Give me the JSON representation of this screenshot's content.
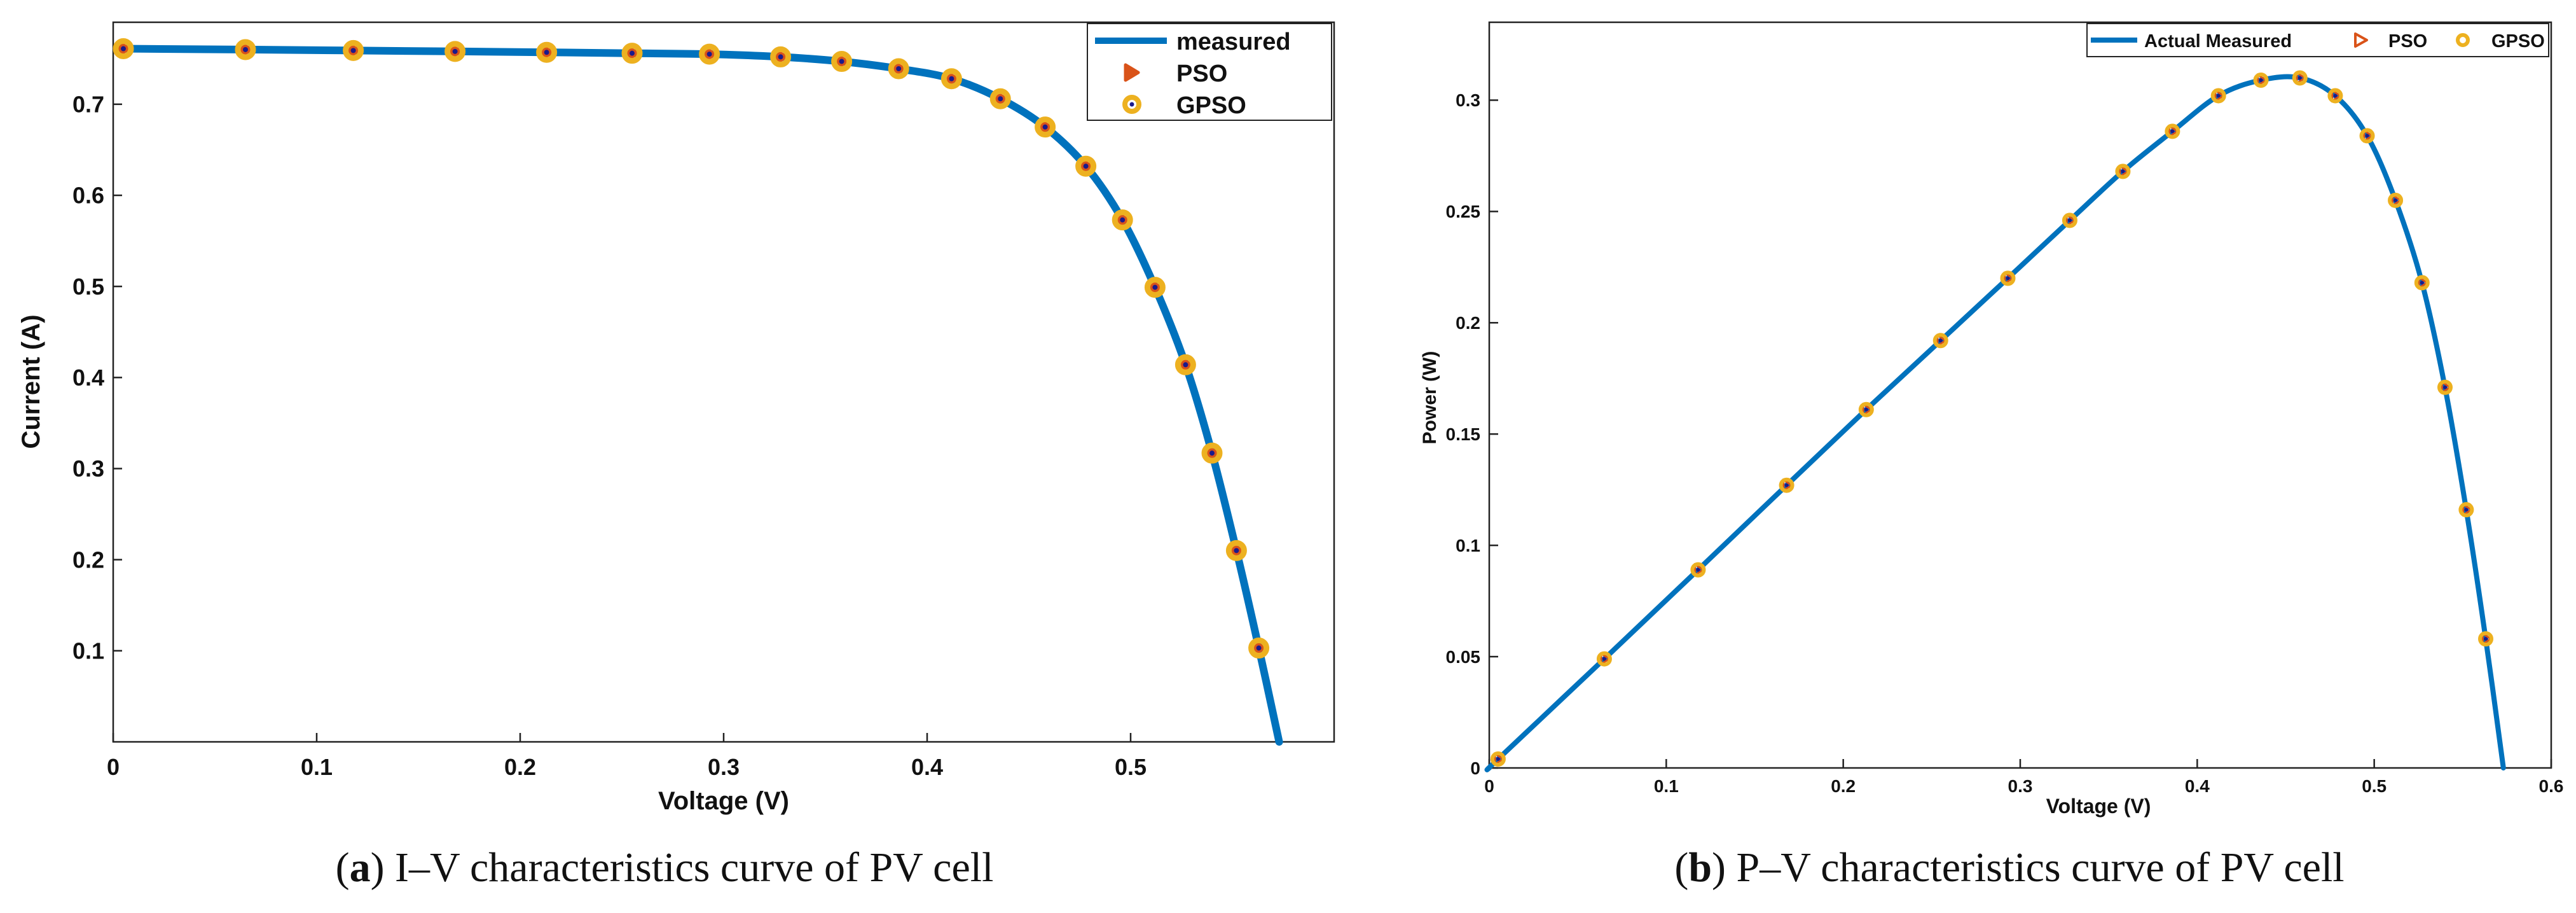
{
  "colors": {
    "line": "#0072BD",
    "pso_marker": "#D95319",
    "gpso_marker": "#EDB120",
    "gpso_center": "#1a1a8c"
  },
  "chart_data": [
    {
      "type": "line",
      "caption_letter": "a",
      "caption_text": " I–V characteristics curve of PV cell",
      "xlabel": "Voltage (V)",
      "ylabel": "Current (A)",
      "xlim": [
        0,
        0.6
      ],
      "ylim": [
        0,
        0.79
      ],
      "xticks": [
        0,
        0.1,
        0.2,
        0.3,
        0.4,
        0.5
      ],
      "xtick_labels": [
        "0",
        "0.1",
        "0.2",
        "0.3",
        "0.4",
        "0.5"
      ],
      "yticks": [
        0.1,
        0.2,
        0.3,
        0.4,
        0.5,
        0.6,
        0.7
      ],
      "ytick_labels": [
        "0.1",
        "0.2",
        "0.3",
        "0.4",
        "0.5",
        "0.6",
        "0.7"
      ],
      "legend": [
        "measured",
        "PSO",
        "GPSO"
      ],
      "legend_position": "top-right",
      "series": [
        {
          "name": "measured",
          "x": [
            0.005,
            0.065,
            0.118,
            0.168,
            0.213,
            0.255,
            0.293,
            0.328,
            0.358,
            0.386,
            0.412,
            0.436,
            0.458,
            0.478,
            0.496,
            0.512,
            0.527,
            0.54,
            0.552,
            0.563,
            0.573
          ],
          "y": [
            0.761,
            0.76,
            0.759,
            0.758,
            0.757,
            0.756,
            0.755,
            0.752,
            0.747,
            0.739,
            0.728,
            0.706,
            0.675,
            0.632,
            0.573,
            0.499,
            0.414,
            0.317,
            0.21,
            0.103,
            0.0
          ]
        },
        {
          "name": "PSO",
          "x": [
            0.005,
            0.065,
            0.118,
            0.168,
            0.213,
            0.255,
            0.293,
            0.328,
            0.358,
            0.386,
            0.412,
            0.436,
            0.458,
            0.478,
            0.496,
            0.512,
            0.527,
            0.54,
            0.552,
            0.563
          ],
          "y": [
            0.761,
            0.76,
            0.759,
            0.758,
            0.757,
            0.756,
            0.755,
            0.752,
            0.747,
            0.739,
            0.728,
            0.706,
            0.675,
            0.632,
            0.573,
            0.499,
            0.414,
            0.317,
            0.21,
            0.103
          ]
        },
        {
          "name": "GPSO",
          "x": [
            0.005,
            0.065,
            0.118,
            0.168,
            0.213,
            0.255,
            0.293,
            0.328,
            0.358,
            0.386,
            0.412,
            0.436,
            0.458,
            0.478,
            0.496,
            0.512,
            0.527,
            0.54,
            0.552,
            0.563
          ],
          "y": [
            0.761,
            0.76,
            0.759,
            0.758,
            0.757,
            0.756,
            0.755,
            0.752,
            0.747,
            0.739,
            0.728,
            0.706,
            0.675,
            0.632,
            0.573,
            0.499,
            0.414,
            0.317,
            0.21,
            0.103
          ]
        }
      ]
    },
    {
      "type": "line",
      "caption_letter": "b",
      "caption_text": " P–V characteristics curve of PV cell",
      "xlabel": "Voltage (V)",
      "ylabel": "Power (W)",
      "xlim": [
        0,
        0.6
      ],
      "ylim": [
        0,
        0.335
      ],
      "xticks": [
        0,
        0.1,
        0.2,
        0.3,
        0.4,
        0.5,
        0.6
      ],
      "xtick_labels": [
        "0",
        "0.1",
        "0.2",
        "0.3",
        "0.4",
        "0.5",
        "0.6"
      ],
      "yticks": [
        0,
        0.05,
        0.1,
        0.15,
        0.2,
        0.25,
        0.3
      ],
      "ytick_labels": [
        "0",
        "0.05",
        "0.1",
        "0.15",
        "0.2",
        "0.25",
        "0.3"
      ],
      "legend": [
        "Actual Measured",
        "PSO",
        "GPSO"
      ],
      "legend_position": "top-right",
      "series": [
        {
          "name": "Actual Measured",
          "x": [
            0,
            0.005,
            0.065,
            0.118,
            0.168,
            0.213,
            0.255,
            0.293,
            0.328,
            0.358,
            0.386,
            0.412,
            0.436,
            0.458,
            0.478,
            0.496,
            0.512,
            0.527,
            0.54,
            0.552,
            0.563,
            0.573
          ],
          "y": [
            0,
            0.004,
            0.049,
            0.089,
            0.127,
            0.161,
            0.192,
            0.22,
            0.246,
            0.268,
            0.286,
            0.302,
            0.309,
            0.31,
            0.302,
            0.284,
            0.255,
            0.218,
            0.171,
            0.116,
            0.058,
            0.0
          ]
        },
        {
          "name": "PSO",
          "x": [
            0.005,
            0.065,
            0.118,
            0.168,
            0.213,
            0.255,
            0.293,
            0.328,
            0.358,
            0.386,
            0.412,
            0.436,
            0.458,
            0.478,
            0.496,
            0.512,
            0.527,
            0.54,
            0.552,
            0.563
          ],
          "y": [
            0.004,
            0.049,
            0.089,
            0.127,
            0.161,
            0.192,
            0.22,
            0.246,
            0.268,
            0.286,
            0.302,
            0.309,
            0.31,
            0.302,
            0.284,
            0.255,
            0.218,
            0.171,
            0.116,
            0.058
          ]
        },
        {
          "name": "GPSO",
          "x": [
            0.005,
            0.065,
            0.118,
            0.168,
            0.213,
            0.255,
            0.293,
            0.328,
            0.358,
            0.386,
            0.412,
            0.436,
            0.458,
            0.478,
            0.496,
            0.512,
            0.527,
            0.54,
            0.552,
            0.563
          ],
          "y": [
            0.004,
            0.049,
            0.089,
            0.127,
            0.161,
            0.192,
            0.22,
            0.246,
            0.268,
            0.286,
            0.302,
            0.309,
            0.31,
            0.302,
            0.284,
            0.255,
            0.218,
            0.171,
            0.116,
            0.058
          ]
        }
      ]
    }
  ]
}
